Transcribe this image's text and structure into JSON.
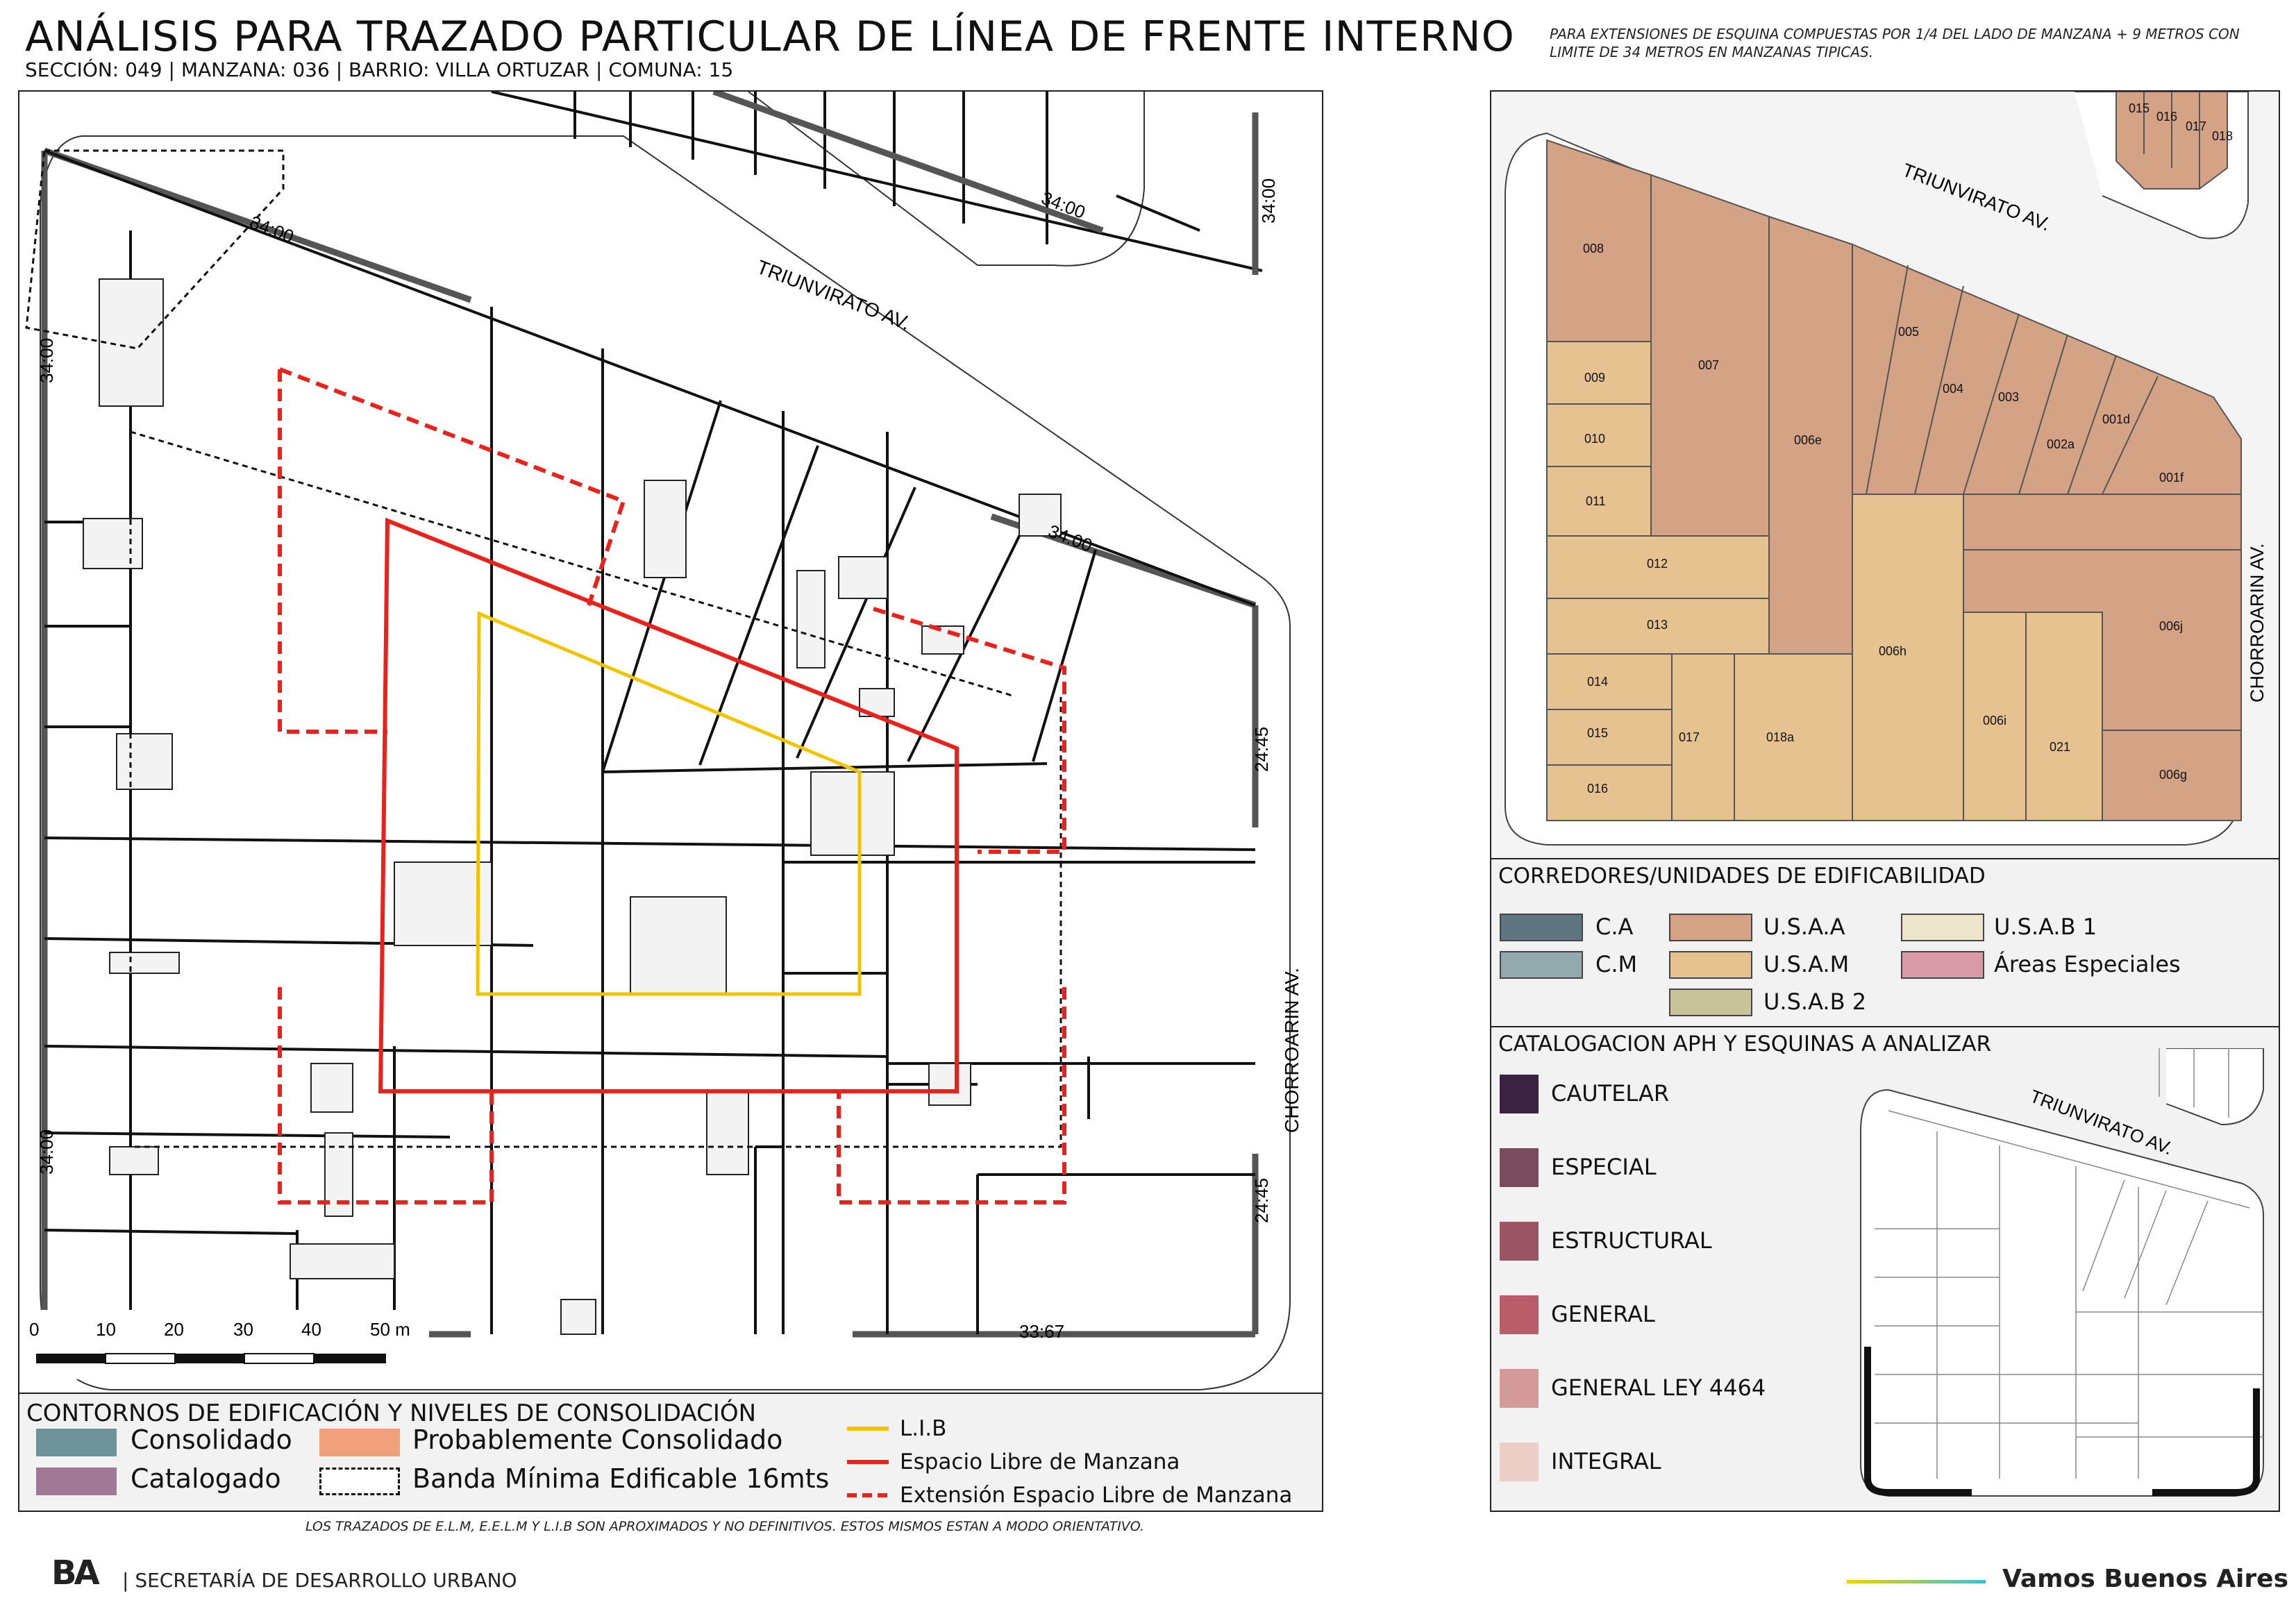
{
  "header": {
    "title": "ANÁLISIS PARA TRAZADO PARTICULAR DE LÍNEA DE FRENTE INTERNO",
    "subtitle": "SECCIÓN: 049 |  MANZANA: 036 | BARRIO: VILLA ORTUZAR | COMUNA: 15",
    "note": "PARA EXTENSIONES DE ESQUINA COMPUESTAS POR 1/4 DEL LADO DE MANZANA + 9 METROS CON LIMITE DE 34 METROS EN MANZANAS TIPICAS."
  },
  "main_map": {
    "street_north": "TRIUNVIRATO AV.",
    "street_east": "CHORROARIN AV.",
    "dims": {
      "nw_diag": "34:00",
      "w_top": "34:00",
      "ne_top": "34:00",
      "ne_right": "34:00",
      "e_top": "24:45",
      "e_bottom": "24:45",
      "w_bottom": "34:00",
      "s_bottom": "33:67"
    },
    "scale": {
      "labels": [
        "0",
        "10",
        "20",
        "30",
        "40",
        "50 m"
      ]
    }
  },
  "legend_consolidation": {
    "title": "CONTORNOS DE EDIFICACIÓN Y NIVELES DE CONSOLIDACIÓN",
    "items": [
      {
        "label": "Consolidado",
        "color": "#6e939b"
      },
      {
        "label": "Probablemente Consolidado",
        "color": "#f0a07a"
      },
      {
        "label": "Catalogado",
        "color": "#a07896"
      },
      {
        "label": "Banda Mínima Edificable 16mts",
        "color": "#ffffff"
      }
    ],
    "lines": [
      {
        "label": "L.I.B",
        "color": "#f2c400",
        "style": "solid"
      },
      {
        "label": "Espacio Libre de Manzana",
        "color": "#e8231d",
        "style": "solid"
      },
      {
        "label": "Extensión Espacio Libre de Manzana",
        "color": "#e8231d",
        "style": "dashed"
      }
    ]
  },
  "footer": {
    "disclaimer": "LOS TRAZADOS DE E.L.M, E.E.L.M Y L.I.B SON APROXIMADOS Y NO DEFINITIVOS. ESTOS MISMOS ESTAN A MODO ORIENTATIVO.",
    "org": "| SECRETARÍA DE DESARROLLO URBANO",
    "logo": "BA",
    "brand": "Vamos Buenos Aires"
  },
  "parcel_map": {
    "street_north": "TRIUNVIRATO AV.",
    "street_east": "CHORROARIN AV.",
    "parcels": [
      "015",
      "016",
      "017",
      "018",
      "008",
      "007",
      "009",
      "010",
      "011",
      "006e",
      "005",
      "004",
      "003",
      "002a",
      "001d",
      "001f",
      "012",
      "013",
      "014",
      "015",
      "016",
      "017",
      "018a",
      "006h",
      "006i",
      "021",
      "006j",
      "006g"
    ]
  },
  "corridors": {
    "title": "CORREDORES/UNIDADES DE EDIFICABILIDAD",
    "items": [
      {
        "label": "C.A",
        "color": "#5f7580"
      },
      {
        "label": "C.M",
        "color": "#93a9ad"
      },
      {
        "label": "U.S.A.A",
        "color": "#d4a285"
      },
      {
        "label": "U.S.A.M",
        "color": "#e6c290"
      },
      {
        "label": "U.S.A.B 2",
        "color": "#c9c39a"
      },
      {
        "label": "U.S.A.B 1",
        "color": "#ede6cc"
      },
      {
        "label": "Áreas Especiales",
        "color": "#d99aa8"
      }
    ]
  },
  "catalog": {
    "title": "CATALOGACION APH Y ESQUINAS A ANALIZAR",
    "items": [
      {
        "label": "CAUTELAR",
        "color": "#3a2242"
      },
      {
        "label": "ESPECIAL",
        "color": "#7b4c5e"
      },
      {
        "label": "ESTRUCTURAL",
        "color": "#9b5566"
      },
      {
        "label": "GENERAL",
        "color": "#b95d6a"
      },
      {
        "label": "GENERAL LEY 4464",
        "color": "#d49a9a"
      },
      {
        "label": "INTEGRAL",
        "color": "#ecd0c8"
      }
    ],
    "mini_street": "TRIUNVIRATO AV."
  }
}
